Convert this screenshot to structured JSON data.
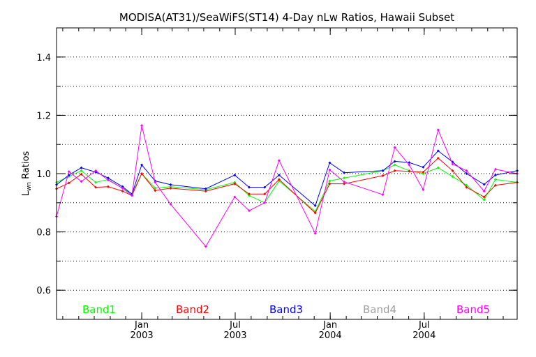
{
  "chart_data": {
    "type": "line",
    "title": "MODISA(AT31)/SeaWiFS(ST14) 4-Day nLw Ratios, Hawaii Subset",
    "ylabel_main": "L",
    "ylabel_sub": "wn",
    "ylabel_rest": " Ratios",
    "ylim": [
      0.5,
      1.5
    ],
    "xlim": [
      "2002-07-20",
      "2004-12-28"
    ],
    "yticks": [
      {
        "value": 0.6,
        "label": "0.6"
      },
      {
        "value": 0.8,
        "label": "0.8"
      },
      {
        "value": 1.0,
        "label": "1.0"
      },
      {
        "value": 1.2,
        "label": "1.2"
      },
      {
        "value": 1.4,
        "label": "1.4"
      }
    ],
    "xticks": [
      {
        "date": "2003-01-01",
        "month": "Jan",
        "year": "2003"
      },
      {
        "date": "2003-07-01",
        "month": "Jul",
        "year": "2003"
      },
      {
        "date": "2004-01-01",
        "month": "Jan",
        "year": "2004"
      },
      {
        "date": "2004-07-01",
        "month": "Jul",
        "year": "2004"
      }
    ],
    "grid": "horizontal dotted",
    "legend_position": "bottom-inside",
    "series": [
      {
        "name": "Band1",
        "color": "#00ff00",
        "points": [
          [
            "2002-07-20",
            0.97
          ],
          [
            "2002-08-13",
            0.99
          ],
          [
            "2002-09-06",
            1.01
          ],
          [
            "2002-10-04",
            0.97
          ],
          [
            "2002-10-28",
            0.98
          ],
          [
            "2002-11-25",
            0.95
          ],
          [
            "2002-12-13",
            0.93
          ],
          [
            "2003-01-01",
            1.0
          ],
          [
            "2003-01-27",
            0.95
          ],
          [
            "2003-02-26",
            0.955
          ],
          [
            "2003-05-05",
            0.945
          ],
          [
            "2003-06-30",
            0.97
          ],
          [
            "2003-07-28",
            0.925
          ],
          [
            "2003-08-27",
            0.9
          ],
          [
            "2003-09-24",
            0.975
          ],
          [
            "2003-12-03",
            0.87
          ],
          [
            "2003-12-31",
            0.975
          ],
          [
            "2004-01-28",
            0.985
          ],
          [
            "2004-04-12",
            1.01
          ],
          [
            "2004-05-05",
            1.03
          ],
          [
            "2004-06-02",
            1.01
          ],
          [
            "2004-06-29",
            1.0
          ],
          [
            "2004-07-28",
            1.02
          ],
          [
            "2004-08-25",
            0.99
          ],
          [
            "2004-09-21",
            0.96
          ],
          [
            "2004-10-25",
            0.91
          ],
          [
            "2004-11-16",
            0.98
          ],
          [
            "2004-12-28",
            0.97
          ]
        ]
      },
      {
        "name": "Band2",
        "color": "#ff0000",
        "points": [
          [
            "2002-07-20",
            0.948
          ],
          [
            "2002-08-13",
            0.968
          ],
          [
            "2002-09-06",
            0.998
          ],
          [
            "2002-10-04",
            0.953
          ],
          [
            "2002-10-28",
            0.955
          ],
          [
            "2002-11-25",
            0.94
          ],
          [
            "2002-12-13",
            0.925
          ],
          [
            "2003-01-01",
            1.0
          ],
          [
            "2003-01-27",
            0.942
          ],
          [
            "2003-02-26",
            0.95
          ],
          [
            "2003-05-05",
            0.94
          ],
          [
            "2003-06-30",
            0.965
          ],
          [
            "2003-07-28",
            0.93
          ],
          [
            "2003-08-27",
            0.93
          ],
          [
            "2003-09-24",
            0.98
          ],
          [
            "2003-12-03",
            0.865
          ],
          [
            "2003-12-31",
            0.965
          ],
          [
            "2004-01-28",
            0.965
          ],
          [
            "2004-04-12",
            0.993
          ],
          [
            "2004-05-05",
            1.01
          ],
          [
            "2004-06-02",
            1.008
          ],
          [
            "2004-06-29",
            1.005
          ],
          [
            "2004-07-28",
            1.053
          ],
          [
            "2004-08-25",
            1.01
          ],
          [
            "2004-09-21",
            0.953
          ],
          [
            "2004-10-25",
            0.92
          ],
          [
            "2004-11-16",
            0.96
          ],
          [
            "2004-12-28",
            0.97
          ]
        ]
      },
      {
        "name": "Band3",
        "color": "#0000ff",
        "points": [
          [
            "2002-07-20",
            0.962
          ],
          [
            "2002-08-13",
            0.995
          ],
          [
            "2002-09-06",
            1.02
          ],
          [
            "2002-10-04",
            1.005
          ],
          [
            "2002-10-28",
            0.985
          ],
          [
            "2002-11-25",
            0.955
          ],
          [
            "2002-12-13",
            0.93
          ],
          [
            "2003-01-01",
            1.03
          ],
          [
            "2003-01-27",
            0.975
          ],
          [
            "2003-02-26",
            0.962
          ],
          [
            "2003-05-05",
            0.948
          ],
          [
            "2003-06-30",
            0.995
          ],
          [
            "2003-07-28",
            0.953
          ],
          [
            "2003-08-27",
            0.953
          ],
          [
            "2003-09-24",
            0.995
          ],
          [
            "2003-12-03",
            0.89
          ],
          [
            "2003-12-31",
            1.037
          ],
          [
            "2004-01-28",
            1.003
          ],
          [
            "2004-04-12",
            1.01
          ],
          [
            "2004-05-05",
            1.042
          ],
          [
            "2004-06-02",
            1.038
          ],
          [
            "2004-06-29",
            1.022
          ],
          [
            "2004-07-28",
            1.078
          ],
          [
            "2004-08-25",
            1.04
          ],
          [
            "2004-09-21",
            1.0
          ],
          [
            "2004-10-25",
            0.963
          ],
          [
            "2004-11-16",
            0.995
          ],
          [
            "2004-12-28",
            1.01
          ]
        ]
      },
      {
        "name": "Band4",
        "color": "#a0a0a0",
        "points": []
      },
      {
        "name": "Band5",
        "color": "#ff00ff",
        "points": [
          [
            "2002-07-20",
            0.853
          ],
          [
            "2002-08-13",
            1.007
          ],
          [
            "2002-09-06",
            0.973
          ],
          [
            "2002-10-04",
            1.01
          ],
          [
            "2002-10-28",
            0.978
          ],
          [
            "2002-11-25",
            0.95
          ],
          [
            "2002-12-13",
            0.925
          ],
          [
            "2003-01-01",
            1.165
          ],
          [
            "2003-01-27",
            0.97
          ],
          [
            "2003-02-26",
            0.895
          ],
          [
            "2003-05-05",
            0.75
          ],
          [
            "2003-06-30",
            0.92
          ],
          [
            "2003-07-28",
            0.873
          ],
          [
            "2003-08-27",
            0.9
          ],
          [
            "2003-09-24",
            1.045
          ],
          [
            "2003-12-03",
            0.795
          ],
          [
            "2003-12-31",
            1.013
          ],
          [
            "2004-01-28",
            0.972
          ],
          [
            "2004-04-12",
            0.928
          ],
          [
            "2004-05-05",
            1.09
          ],
          [
            "2004-06-02",
            1.03
          ],
          [
            "2004-06-29",
            0.945
          ],
          [
            "2004-07-28",
            1.15
          ],
          [
            "2004-08-25",
            1.033
          ],
          [
            "2004-09-21",
            1.01
          ],
          [
            "2004-10-25",
            0.94
          ],
          [
            "2004-11-16",
            1.015
          ],
          [
            "2004-12-28",
            1.0
          ]
        ]
      }
    ]
  }
}
